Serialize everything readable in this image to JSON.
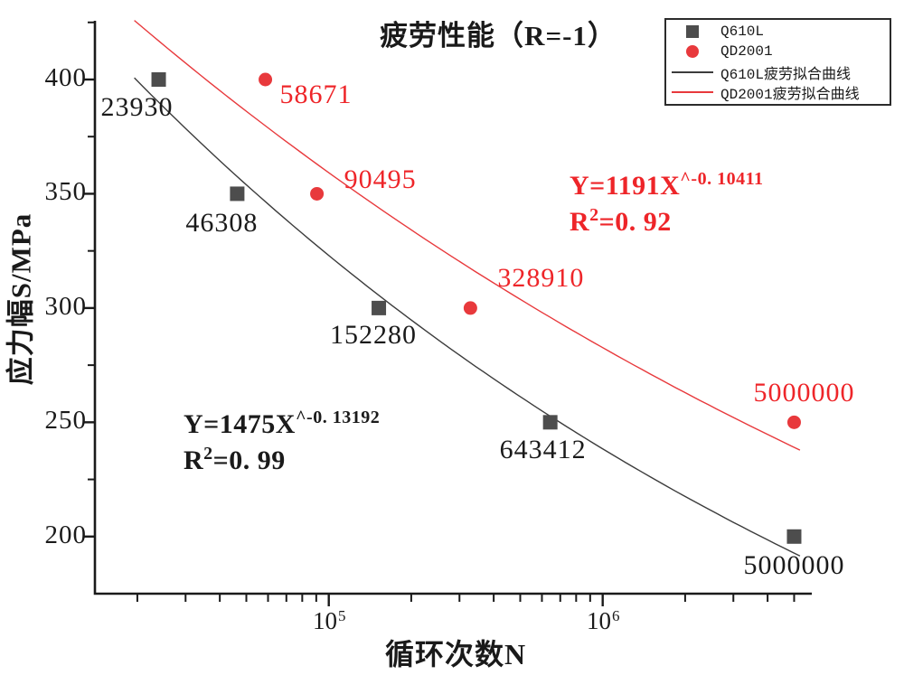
{
  "chart_data": {
    "type": "scatter",
    "title": "疲劳性能（R=-1）",
    "xlabel": "循环次数N",
    "ylabel": "应力幅S/MPa",
    "x_scale": "log",
    "xlim": [
      14000,
      5800000
    ],
    "ylim": [
      175,
      425.7
    ],
    "grid": false,
    "legend_position": "top-right",
    "x_major_ticks": [
      {
        "value": 100000,
        "base": "10",
        "exp": "5"
      },
      {
        "value": 1000000,
        "base": "10",
        "exp": "6"
      }
    ],
    "x_minor_ticks": [
      20000,
      30000,
      40000,
      50000,
      60000,
      70000,
      80000,
      90000,
      200000,
      300000,
      400000,
      500000,
      600000,
      700000,
      800000,
      900000,
      2000000,
      3000000,
      4000000,
      5000000
    ],
    "y_major_ticks": [
      400,
      350,
      300,
      250,
      200
    ],
    "y_minor_ticks": [
      425,
      375,
      325,
      275,
      225
    ],
    "series": [
      {
        "name": "Q610L",
        "marker": "square",
        "marker_color": "#4d4d4d",
        "label_color": "#1a1a1a",
        "points": [
          {
            "cycles": 23930,
            "stress": 400,
            "label": "23930",
            "label_offset": [
              -64,
              16
            ]
          },
          {
            "cycles": 46308,
            "stress": 350,
            "label": "46308",
            "label_offset": [
              -57,
              18
            ]
          },
          {
            "cycles": 152280,
            "stress": 300,
            "label": "152280",
            "label_offset": [
              -54,
              15
            ]
          },
          {
            "cycles": 643412,
            "stress": 250,
            "label": "643412",
            "label_offset": [
              -56,
              16
            ]
          },
          {
            "cycles": 5000000,
            "stress": 200,
            "label": "5000000",
            "label_offset": [
              -56,
              17
            ]
          }
        ]
      },
      {
        "name": "QD2001",
        "marker": "circle",
        "marker_color": "#e8393c",
        "label_color": "#ee2529",
        "points": [
          {
            "cycles": 58671,
            "stress": 400,
            "label": "58671",
            "label_offset": [
              16,
              2
            ]
          },
          {
            "cycles": 90495,
            "stress": 350,
            "label": "90495",
            "label_offset": [
              30,
              -30
            ]
          },
          {
            "cycles": 328910,
            "stress": 300,
            "label": "328910",
            "label_offset": [
              30,
              -48
            ]
          },
          {
            "cycles": 5000000,
            "stress": 250,
            "label": "5000000",
            "label_offset": [
              -45,
              -47
            ]
          }
        ]
      }
    ],
    "fits": [
      {
        "name": "Q610L疲劳拟合曲线",
        "color": "#3c3c3c",
        "coefficient": 1475,
        "exponent": -0.13192,
        "r_squared": 0.99,
        "x_range": [
          19500,
          5250000
        ]
      },
      {
        "name": "QD2001疲劳拟合曲线",
        "color": "#e8393c",
        "coefficient": 1191,
        "exponent": -0.10411,
        "r_squared": 0.92,
        "x_range": [
          19500,
          5250000
        ]
      }
    ]
  },
  "legend": {
    "entries": [
      {
        "label": "Q610L",
        "marker": "square"
      },
      {
        "label": "QD2001",
        "marker": "circle"
      },
      {
        "label": "Q610L疲劳拟合曲线",
        "marker": "black-line"
      },
      {
        "label": "QD2001疲劳拟合曲线",
        "marker": "red-line"
      }
    ]
  },
  "annotations": {
    "qd2001": {
      "eq_base": "Y=1191X",
      "eq_sup": "^-0. 10411",
      "r2_base": "R",
      "r2_sup": "2",
      "r2_rest": "=0. 92"
    },
    "q610l": {
      "eq_base": "Y=1475X",
      "eq_sup": "^-0. 13192",
      "r2_base": "R",
      "r2_sup": "2",
      "r2_rest": "=0. 99"
    }
  },
  "colors": {
    "red_text": "#ee2529",
    "black_text": "#1a1a1a",
    "axis": "#1a1a1a",
    "marker_gray": "#4d4d4d",
    "marker_red": "#e8393c"
  }
}
